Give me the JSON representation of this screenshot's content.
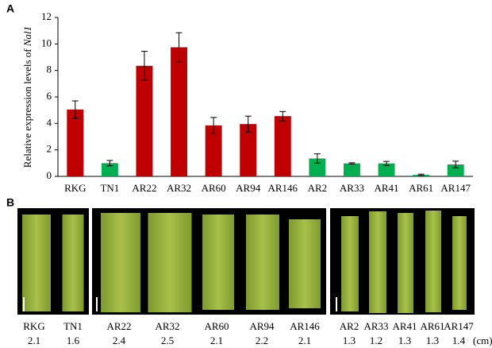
{
  "chart_data": {
    "type": "bar",
    "panel_label": "A",
    "y_label": "Relative expression levels of",
    "y_label_gene": "Nal1",
    "categories": [
      "RKG",
      "TN1",
      "AR22",
      "AR32",
      "AR60",
      "AR94",
      "AR146",
      "AR2",
      "AR33",
      "AR41",
      "AR61",
      "AR147"
    ],
    "values": [
      5.05,
      1.0,
      8.35,
      9.75,
      3.85,
      3.95,
      4.55,
      1.35,
      0.98,
      0.98,
      0.12,
      0.9
    ],
    "errors": [
      0.65,
      0.2,
      1.1,
      1.1,
      0.6,
      0.6,
      0.35,
      0.35,
      0.05,
      0.15,
      0.05,
      0.25
    ],
    "colors": [
      "#c00000",
      "#00b050",
      "#c00000",
      "#c00000",
      "#c00000",
      "#c00000",
      "#c00000",
      "#00b050",
      "#00b050",
      "#00b050",
      "#00b050",
      "#00b050"
    ],
    "ylim": [
      0,
      12
    ],
    "yticks": [
      0,
      2,
      4,
      6,
      8,
      10,
      12
    ]
  },
  "panel_b": {
    "panel_label": "B",
    "unit": "(cm)",
    "samples": [
      {
        "name": "RKG",
        "width": 2.1
      },
      {
        "name": "TN1",
        "width": 1.6
      },
      {
        "name": "AR22",
        "width": 2.4
      },
      {
        "name": "AR32",
        "width": 2.5
      },
      {
        "name": "AR60",
        "width": 2.1
      },
      {
        "name": "AR94",
        "width": 2.2
      },
      {
        "name": "AR146",
        "width": 2.1
      },
      {
        "name": "AR2",
        "width": 1.3
      },
      {
        "name": "AR33",
        "width": 1.2
      },
      {
        "name": "AR41",
        "width": 1.3
      },
      {
        "name": "AR61",
        "width": 1.3
      },
      {
        "name": "AR147",
        "width": 1.4
      }
    ]
  }
}
